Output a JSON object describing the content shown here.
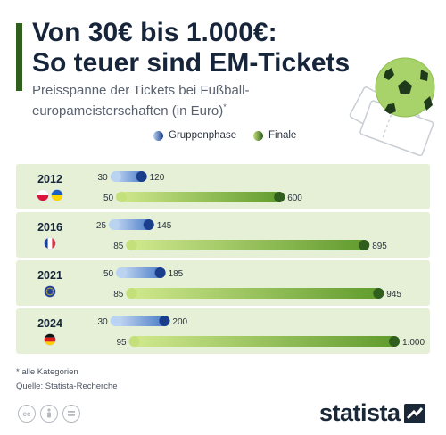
{
  "header": {
    "title_line1": "Von 30€ bis 1.000€:",
    "title_line2": "So teuer sind EM-Tickets",
    "subtitle_line1": "Preisspanne der Tickets bei Fußball-",
    "subtitle_line2": "europameisterschaften (in Euro)",
    "subtitle_marker": "*"
  },
  "legend": {
    "group": "Gruppenphase",
    "final": "Finale"
  },
  "colors": {
    "group_dark": "#1a3d8c",
    "group_light": "#b9d3f1",
    "final_dark": "#2f5e1e",
    "final_light": "#c3e07a",
    "band": "#e6f0d6",
    "title_bar": "#2f5e1e"
  },
  "chart_data": {
    "type": "bar",
    "title": "Von 30€ bis 1.000€: So teuer sind EM-Tickets",
    "subtitle": "Preisspanne der Tickets bei Fußballeuropameisterschaften (in Euro)*",
    "xlim": [
      0,
      1000
    ],
    "legend_position": "top",
    "categories": [
      "2012",
      "2016",
      "2021",
      "2024"
    ],
    "flags": [
      [
        "poland-flag-icon",
        "ukraine-flag-icon"
      ],
      [
        "france-flag-icon"
      ],
      [
        "eu-flag-icon"
      ],
      [
        "germany-flag-icon"
      ]
    ],
    "series": [
      {
        "name": "Gruppenphase",
        "ranges": [
          {
            "min": 30,
            "max": 120,
            "min_label": "30",
            "max_label": "120"
          },
          {
            "min": 25,
            "max": 145,
            "min_label": "25",
            "max_label": "145"
          },
          {
            "min": 50,
            "max": 185,
            "min_label": "50",
            "max_label": "185"
          },
          {
            "min": 30,
            "max": 200,
            "min_label": "30",
            "max_label": "200"
          }
        ]
      },
      {
        "name": "Finale",
        "ranges": [
          {
            "min": 50,
            "max": 600,
            "min_label": "50",
            "max_label": "600"
          },
          {
            "min": 85,
            "max": 895,
            "min_label": "85",
            "max_label": "895"
          },
          {
            "min": 85,
            "max": 945,
            "min_label": "85",
            "max_label": "945"
          },
          {
            "min": 95,
            "max": 1000,
            "min_label": "95",
            "max_label": "1.000"
          }
        ]
      }
    ]
  },
  "footer": {
    "note": "* alle Kategorien",
    "source": "Quelle: Statista-Recherche",
    "brand": "statista",
    "license_icons": [
      "cc-icon",
      "by-icon",
      "nd-icon"
    ]
  }
}
